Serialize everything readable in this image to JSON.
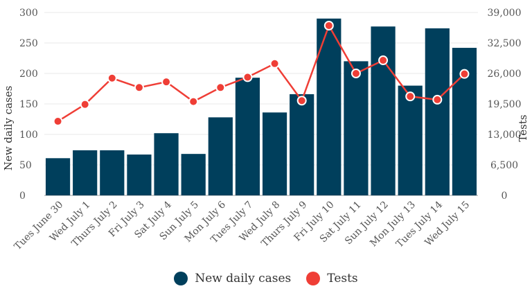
{
  "chart_data": {
    "type": "bar",
    "categories": [
      "Tues June 30",
      "Wed July 1",
      "Thurs July 2",
      "Fri July 3",
      "Sat July 4",
      "Sun July 5",
      "Mon July 6",
      "Tues July 7",
      "Wed July 8",
      "Thurs July 9",
      "Fri July 10",
      "Sat July 11",
      "Sun July 12",
      "Mon July 13",
      "Tues July 14",
      "Wed July 15"
    ],
    "series": [
      {
        "name": "New daily cases",
        "type": "bar",
        "axis": "left",
        "color": "#003f5c",
        "values": [
          61,
          74,
          74,
          67,
          102,
          68,
          128,
          193,
          136,
          166,
          290,
          220,
          277,
          180,
          274,
          242
        ]
      },
      {
        "name": "Tests",
        "type": "line",
        "axis": "right",
        "color": "#ef3e36",
        "values": [
          15800,
          19400,
          25000,
          23000,
          24200,
          20000,
          23000,
          25200,
          28100,
          20200,
          36200,
          26000,
          28800,
          21100,
          20400,
          25900
        ]
      }
    ],
    "ylabel": "New daily cases",
    "y2label": "Tests",
    "ylim": [
      0,
      300
    ],
    "y2lim": [
      0,
      39000
    ],
    "yticks": [
      "0",
      "50",
      "100",
      "150",
      "200",
      "250",
      "300"
    ],
    "y2ticks": [
      "0",
      "6,500",
      "13,000",
      "19,500",
      "26,000",
      "32,500",
      "39,000"
    ],
    "grid": true,
    "legend": "bottom-center"
  }
}
